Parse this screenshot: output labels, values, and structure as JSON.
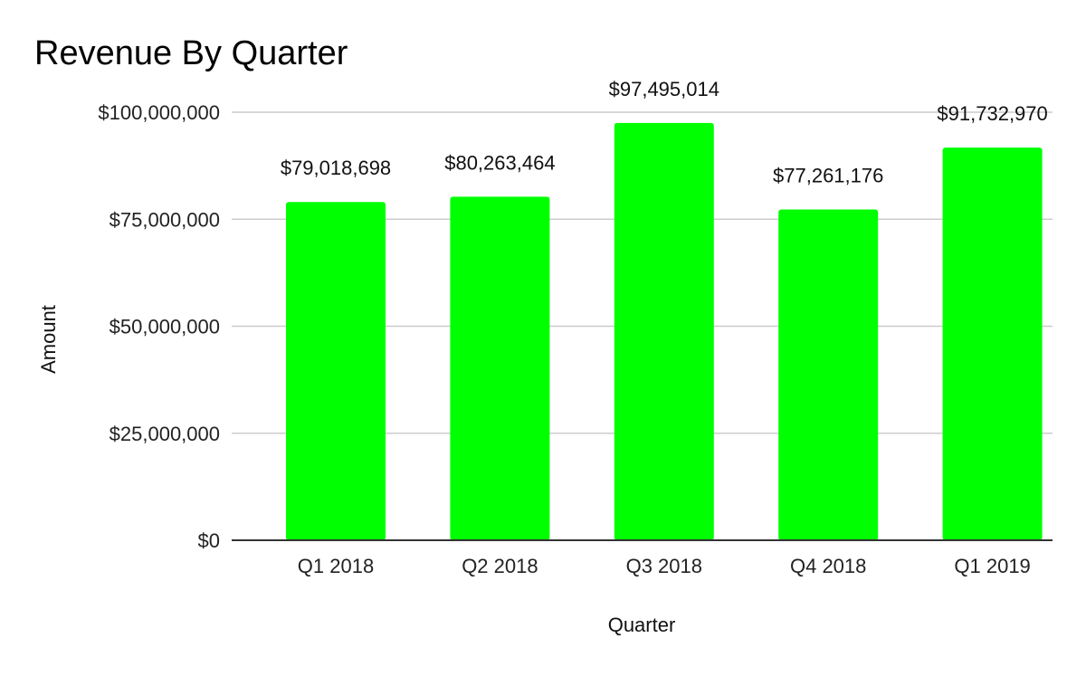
{
  "chart_data": {
    "type": "bar",
    "title": "Revenue By Quarter",
    "xlabel": "Quarter",
    "ylabel": "Amount",
    "categories": [
      "Q1 2018",
      "Q2 2018",
      "Q3 2018",
      "Q4 2018",
      "Q1 2019"
    ],
    "values": [
      79018698,
      80263464,
      97495014,
      77261176,
      91732970
    ],
    "data_labels": [
      "$79,018,698",
      "$80,263,464",
      "$97,495,014",
      "$77,261,176",
      "$91,732,970"
    ],
    "ylim": [
      0,
      100000000
    ],
    "y_ticks": [
      0,
      25000000,
      50000000,
      75000000,
      100000000
    ],
    "y_tick_labels": [
      "$0",
      "$25,000,000",
      "$50,000,000",
      "$75,000,000",
      "$100,000,000"
    ],
    "grid": true,
    "legend": "none",
    "colors": {
      "bar": "#00ff00",
      "grid": "#cccccc",
      "axis": "#333333",
      "text": "#222222"
    }
  }
}
